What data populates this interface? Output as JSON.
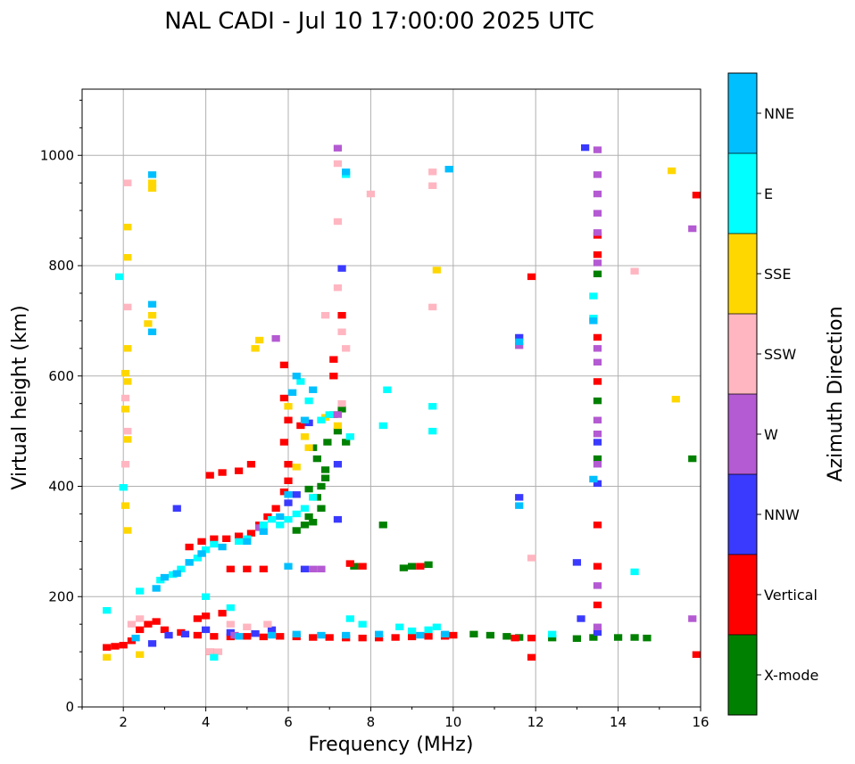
{
  "chart_data": {
    "type": "scatter",
    "title": "NAL CADI - Jul 10 17:00:00 2025 UTC",
    "xlabel": "Frequency (MHz)",
    "ylabel": "Virtual height (km)",
    "xlim": [
      1,
      16
    ],
    "ylim": [
      0,
      1120
    ],
    "xticks": [
      2,
      4,
      6,
      8,
      10,
      12,
      14,
      16
    ],
    "yticks": [
      0,
      200,
      400,
      600,
      800,
      1000
    ],
    "grid": true,
    "colorbar": {
      "label": "Azimuth Direction",
      "categories": [
        {
          "name": "X-mode",
          "color": "#008000"
        },
        {
          "name": "Vertical",
          "color": "#ff0000"
        },
        {
          "name": "NNW",
          "color": "#3a3aff"
        },
        {
          "name": "W",
          "color": "#b45ad2"
        },
        {
          "name": "SSW",
          "color": "#ffb6c1"
        },
        {
          "name": "SSE",
          "color": "#ffd700"
        },
        {
          "name": "E",
          "color": "#00ffff"
        },
        {
          "name": "NNE",
          "color": "#00bfff"
        }
      ]
    },
    "series": [
      {
        "name": "X-mode",
        "points": [
          [
            6.7,
            380
          ],
          [
            6.8,
            360
          ],
          [
            6.5,
            345
          ],
          [
            6.6,
            335
          ],
          [
            6.9,
            430
          ],
          [
            6.7,
            450
          ],
          [
            6.95,
            480
          ],
          [
            6.6,
            470
          ],
          [
            7.3,
            540
          ],
          [
            7.4,
            480
          ],
          [
            7.2,
            500
          ],
          [
            6.4,
            330
          ],
          [
            6.2,
            320
          ],
          [
            9.0,
            255
          ],
          [
            9.4,
            258
          ],
          [
            8.8,
            252
          ],
          [
            10.5,
            132
          ],
          [
            10.9,
            130
          ],
          [
            11.3,
            128
          ],
          [
            11.6,
            126
          ],
          [
            12.4,
            125
          ],
          [
            13.0,
            124
          ],
          [
            13.4,
            126
          ],
          [
            14.0,
            126
          ],
          [
            14.4,
            126
          ],
          [
            14.7,
            125
          ],
          [
            15.8,
            450
          ],
          [
            7.6,
            255
          ],
          [
            6.9,
            415
          ],
          [
            6.5,
            395
          ],
          [
            6.8,
            400
          ],
          [
            7.1,
            530
          ],
          [
            8.3,
            330
          ],
          [
            13.5,
            785
          ],
          [
            13.5,
            450
          ],
          [
            13.5,
            555
          ]
        ]
      },
      {
        "name": "Vertical",
        "points": [
          [
            1.6,
            108
          ],
          [
            1.8,
            110
          ],
          [
            2.0,
            112
          ],
          [
            2.2,
            120
          ],
          [
            2.4,
            140
          ],
          [
            2.6,
            150
          ],
          [
            2.8,
            155
          ],
          [
            3.0,
            140
          ],
          [
            3.4,
            135
          ],
          [
            3.8,
            130
          ],
          [
            4.2,
            128
          ],
          [
            4.6,
            127
          ],
          [
            5.0,
            128
          ],
          [
            5.4,
            127
          ],
          [
            5.8,
            128
          ],
          [
            6.2,
            127
          ],
          [
            6.6,
            126
          ],
          [
            7.0,
            126
          ],
          [
            7.4,
            125
          ],
          [
            7.8,
            125
          ],
          [
            8.2,
            125
          ],
          [
            8.6,
            126
          ],
          [
            9.0,
            127
          ],
          [
            9.4,
            128
          ],
          [
            9.8,
            128
          ],
          [
            10.0,
            130
          ],
          [
            3.8,
            160
          ],
          [
            4.0,
            165
          ],
          [
            4.4,
            170
          ],
          [
            3.6,
            290
          ],
          [
            3.9,
            300
          ],
          [
            4.2,
            305
          ],
          [
            4.5,
            305
          ],
          [
            4.8,
            310
          ],
          [
            5.1,
            315
          ],
          [
            5.3,
            330
          ],
          [
            5.5,
            345
          ],
          [
            5.7,
            360
          ],
          [
            5.9,
            390
          ],
          [
            6.0,
            410
          ],
          [
            6.0,
            440
          ],
          [
            5.9,
            480
          ],
          [
            6.0,
            520
          ],
          [
            5.9,
            560
          ],
          [
            5.9,
            620
          ],
          [
            4.1,
            420
          ],
          [
            4.4,
            425
          ],
          [
            4.8,
            428
          ],
          [
            5.1,
            440
          ],
          [
            4.6,
            250
          ],
          [
            5.0,
            250
          ],
          [
            5.4,
            250
          ],
          [
            4.1,
            100
          ],
          [
            7.1,
            600
          ],
          [
            7.1,
            630
          ],
          [
            7.3,
            710
          ],
          [
            7.5,
            260
          ],
          [
            7.8,
            255
          ],
          [
            9.2,
            255
          ],
          [
            11.9,
            780
          ],
          [
            11.9,
            90
          ],
          [
            11.5,
            125
          ],
          [
            11.9,
            125
          ],
          [
            13.5,
            855
          ],
          [
            13.5,
            820
          ],
          [
            13.5,
            670
          ],
          [
            13.5,
            590
          ],
          [
            13.5,
            330
          ],
          [
            13.5,
            255
          ],
          [
            13.5,
            185
          ],
          [
            15.9,
            95
          ],
          [
            15.9,
            928
          ],
          [
            6.3,
            510
          ]
        ]
      },
      {
        "name": "NNW",
        "points": [
          [
            2.7,
            115
          ],
          [
            3.1,
            130
          ],
          [
            3.5,
            132
          ],
          [
            4.0,
            140
          ],
          [
            4.6,
            135
          ],
          [
            5.2,
            133
          ],
          [
            5.6,
            140
          ],
          [
            6.0,
            370
          ],
          [
            6.2,
            385
          ],
          [
            6.4,
            250
          ],
          [
            7.3,
            795
          ],
          [
            7.2,
            340
          ],
          [
            13.0,
            262
          ],
          [
            13.1,
            160
          ],
          [
            13.2,
            1014
          ],
          [
            13.5,
            405
          ],
          [
            13.5,
            480
          ],
          [
            13.5,
            135
          ],
          [
            3.3,
            360
          ],
          [
            6.5,
            515
          ],
          [
            7.2,
            440
          ],
          [
            11.6,
            380
          ],
          [
            11.6,
            670
          ]
        ]
      },
      {
        "name": "W",
        "points": [
          [
            6.6,
            250
          ],
          [
            6.8,
            250
          ],
          [
            7.2,
            1013
          ],
          [
            7.2,
            530
          ],
          [
            5.7,
            668
          ],
          [
            13.5,
            1010
          ],
          [
            13.5,
            965
          ],
          [
            13.5,
            930
          ],
          [
            13.5,
            895
          ],
          [
            13.5,
            860
          ],
          [
            13.5,
            805
          ],
          [
            13.5,
            650
          ],
          [
            13.5,
            625
          ],
          [
            13.5,
            520
          ],
          [
            13.5,
            440
          ],
          [
            13.5,
            495
          ],
          [
            13.5,
            220
          ],
          [
            13.5,
            145
          ],
          [
            15.8,
            867
          ],
          [
            15.8,
            160
          ],
          [
            11.6,
            655
          ],
          [
            5.3,
            325
          ],
          [
            4.7,
            130
          ]
        ]
      },
      {
        "name": "SSW",
        "points": [
          [
            2.1,
            950
          ],
          [
            2.1,
            725
          ],
          [
            2.05,
            560
          ],
          [
            2.05,
            440
          ],
          [
            2.1,
            500
          ],
          [
            2.2,
            150
          ],
          [
            2.4,
            160
          ],
          [
            4.1,
            100
          ],
          [
            4.3,
            100
          ],
          [
            4.6,
            150
          ],
          [
            5.0,
            145
          ],
          [
            5.5,
            150
          ],
          [
            6.9,
            710
          ],
          [
            7.2,
            985
          ],
          [
            7.2,
            880
          ],
          [
            7.2,
            760
          ],
          [
            7.3,
            680
          ],
          [
            7.3,
            550
          ],
          [
            8.0,
            930
          ],
          [
            9.5,
            970
          ],
          [
            9.5,
            945
          ],
          [
            9.5,
            725
          ],
          [
            11.9,
            270
          ],
          [
            14.4,
            790
          ],
          [
            7.4,
            650
          ]
        ]
      },
      {
        "name": "SSE",
        "points": [
          [
            2.7,
            950
          ],
          [
            2.7,
            940
          ],
          [
            2.7,
            710
          ],
          [
            2.1,
            870
          ],
          [
            2.1,
            815
          ],
          [
            2.1,
            650
          ],
          [
            2.05,
            605
          ],
          [
            2.1,
            590
          ],
          [
            2.05,
            540
          ],
          [
            2.1,
            485
          ],
          [
            2.05,
            365
          ],
          [
            2.1,
            320
          ],
          [
            2.4,
            95
          ],
          [
            1.6,
            90
          ],
          [
            5.2,
            650
          ],
          [
            5.3,
            665
          ],
          [
            6.2,
            435
          ],
          [
            6.4,
            490
          ],
          [
            6.5,
            470
          ],
          [
            6.9,
            525
          ],
          [
            7.2,
            510
          ],
          [
            9.6,
            792
          ],
          [
            15.3,
            972
          ],
          [
            15.4,
            558
          ],
          [
            2.6,
            695
          ],
          [
            6.0,
            545
          ]
        ]
      },
      {
        "name": "E",
        "points": [
          [
            1.6,
            175
          ],
          [
            1.9,
            780
          ],
          [
            2.4,
            210
          ],
          [
            2.9,
            230
          ],
          [
            3.2,
            240
          ],
          [
            3.4,
            250
          ],
          [
            3.6,
            262
          ],
          [
            3.8,
            270
          ],
          [
            4.0,
            285
          ],
          [
            4.2,
            295
          ],
          [
            4.8,
            300
          ],
          [
            5.0,
            305
          ],
          [
            5.4,
            330
          ],
          [
            5.6,
            340
          ],
          [
            5.8,
            330
          ],
          [
            6.0,
            340
          ],
          [
            6.2,
            350
          ],
          [
            6.4,
            360
          ],
          [
            6.6,
            380
          ],
          [
            6.8,
            520
          ],
          [
            6.5,
            555
          ],
          [
            6.3,
            590
          ],
          [
            4.2,
            90
          ],
          [
            4.0,
            200
          ],
          [
            4.6,
            180
          ],
          [
            8.4,
            575
          ],
          [
            8.3,
            510
          ],
          [
            9.5,
            545
          ],
          [
            9.5,
            500
          ],
          [
            8.7,
            145
          ],
          [
            9.0,
            138
          ],
          [
            9.4,
            140
          ],
          [
            9.6,
            145
          ],
          [
            7.5,
            160
          ],
          [
            7.8,
            150
          ],
          [
            7.5,
            490
          ],
          [
            7.4,
            965
          ],
          [
            12.4,
            132
          ],
          [
            13.4,
            745
          ],
          [
            13.4,
            705
          ],
          [
            14.4,
            245
          ],
          [
            7.0,
            530
          ],
          [
            2.0,
            398
          ]
        ]
      },
      {
        "name": "NNE",
        "points": [
          [
            2.7,
            965
          ],
          [
            2.7,
            730
          ],
          [
            2.7,
            680
          ],
          [
            2.8,
            215
          ],
          [
            3.0,
            235
          ],
          [
            3.3,
            242
          ],
          [
            3.6,
            262
          ],
          [
            3.9,
            278
          ],
          [
            4.4,
            290
          ],
          [
            5.0,
            300
          ],
          [
            5.4,
            318
          ],
          [
            5.8,
            345
          ],
          [
            6.0,
            385
          ],
          [
            6.2,
            600
          ],
          [
            6.4,
            520
          ],
          [
            6.1,
            570
          ],
          [
            4.8,
            128
          ],
          [
            5.6,
            130
          ],
          [
            6.2,
            132
          ],
          [
            6.8,
            130
          ],
          [
            7.4,
            130
          ],
          [
            8.2,
            132
          ],
          [
            9.2,
            130
          ],
          [
            9.8,
            132
          ],
          [
            11.6,
            662
          ],
          [
            11.6,
            365
          ],
          [
            13.4,
            700
          ],
          [
            13.4,
            413
          ],
          [
            9.9,
            975
          ],
          [
            6.0,
            255
          ],
          [
            7.4,
            970
          ],
          [
            2.3,
            125
          ],
          [
            6.6,
            575
          ]
        ]
      }
    ]
  }
}
